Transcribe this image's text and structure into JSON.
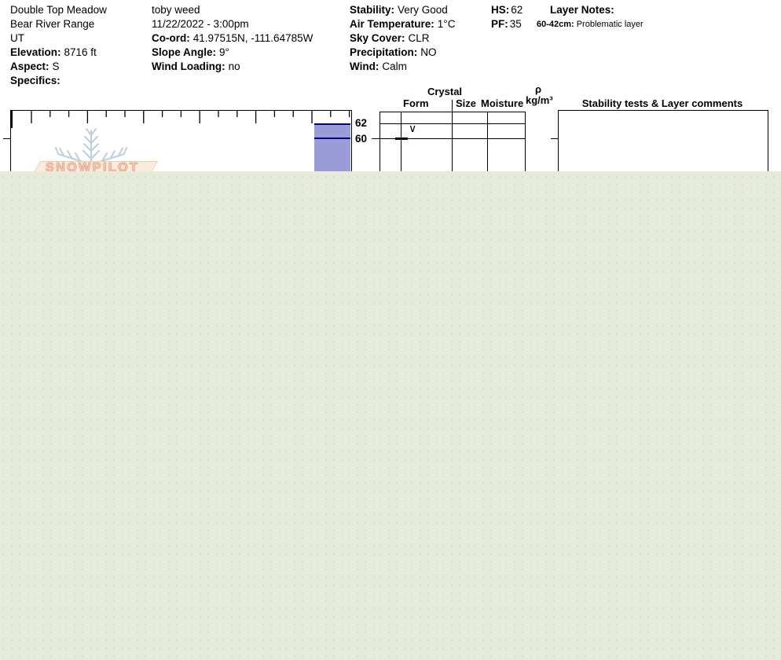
{
  "site": {
    "name": "Double Top Meadow",
    "range": "Bear River Range",
    "state": "UT",
    "elevation_label": "Elevation:",
    "elevation_value": "8716 ft",
    "aspect_label": "Aspect:",
    "aspect_value": "S",
    "specifics_label": "Specifics:"
  },
  "observer": {
    "name": "toby weed",
    "datetime": "11/22/2022 - 3:00pm",
    "coord_label": "Co-ord:",
    "coord_value": "41.97515N, -111.64785W",
    "slope_angle_label": "Slope Angle:",
    "slope_angle_value": "9°",
    "wind_loading_label": "Wind Loading:",
    "wind_loading_value": "no"
  },
  "conditions": {
    "stability_label": "Stability:",
    "stability_value": "Very Good",
    "air_temp_label": "Air Temperature:",
    "air_temp_value": "1°C",
    "sky_label": "Sky Cover:",
    "sky_value": "CLR",
    "precip_label": "Precipitation:",
    "precip_value": "NO",
    "wind_label": "Wind:",
    "wind_value": "Calm"
  },
  "measures": {
    "hs_label": "HS:",
    "hs_value": "62",
    "pf_label": "PF:",
    "pf_value": "35"
  },
  "layer_notes": {
    "title": "Layer Notes:",
    "note_range": "60-42cm:",
    "note_text": "Problematic layer"
  },
  "table_headers": {
    "crystal": "Crystal",
    "form": "Form",
    "size": "Size",
    "moisture": "Moisture",
    "rho": "ρ",
    "rho_units": "kg/m³",
    "stability": "Stability tests & Layer comments"
  },
  "watermark": {
    "text": "SNOWPILOT"
  },
  "chart_data": {
    "type": "snow-profile",
    "hs_cm": 62,
    "pf_cm": 35,
    "depth_unit": "cm",
    "depth_labels": [
      "62",
      "60"
    ],
    "layers": [
      {
        "top_cm": 62,
        "bottom_cm": 60,
        "grain_form_symbol": "∨"
      },
      {
        "top_cm": 60,
        "bottom_cm": 42,
        "comment": "Problematic layer"
      }
    ],
    "bar_fill_color": "#9b9bd7",
    "bar_line_color": "#00008b",
    "layout": "depth increases downward, snow surface at 62 cm; hardness bar against right edge; unlabeled tick axis along top (major every 3rd tick)"
  }
}
